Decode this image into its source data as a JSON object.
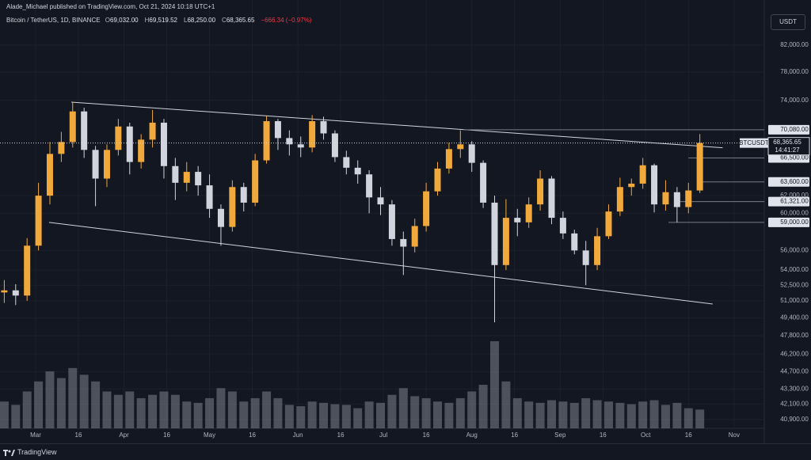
{
  "header": {
    "publisher": "Alade_Michael published on TradingView.com, Oct 21, 2024 10:18 UTC+1",
    "symbol": "Bitcoin / TetherUS, 1D, BINANCE",
    "ohlc": [
      [
        "O",
        "69,032.00"
      ],
      [
        "H",
        "69,519.52"
      ],
      [
        "L",
        "68,250.00"
      ],
      [
        "C",
        "68,365.65"
      ]
    ],
    "change": "−666.34 (−0.97%)",
    "currency": "USDT"
  },
  "footer": {
    "brand": "TradingView"
  },
  "chart_data": {
    "type": "candlestick",
    "log_y": true,
    "grid": true,
    "up_color": "#f0a93a",
    "down_color": "#d1d4dc",
    "volume_color": "#9598a1",
    "xlim": [
      -12.5,
      255.6
    ],
    "ylim": [
      40244,
      89170
    ],
    "xticks": [
      {
        "value": 0,
        "label": "Mar"
      },
      {
        "value": 15,
        "label": "16"
      },
      {
        "value": 31,
        "label": "Apr"
      },
      {
        "value": 46,
        "label": "16"
      },
      {
        "value": 61,
        "label": "May"
      },
      {
        "value": 76,
        "label": "16"
      },
      {
        "value": 92,
        "label": "Jun"
      },
      {
        "value": 107,
        "label": "16"
      },
      {
        "value": 122,
        "label": "Jul"
      },
      {
        "value": 137,
        "label": "16"
      },
      {
        "value": 153,
        "label": "Aug"
      },
      {
        "value": 168,
        "label": "16"
      },
      {
        "value": 184,
        "label": "Sep"
      },
      {
        "value": 199,
        "label": "16"
      },
      {
        "value": 214,
        "label": "Oct"
      },
      {
        "value": 229,
        "label": "16"
      },
      {
        "value": 245,
        "label": "Nov"
      }
    ],
    "yticks": [
      {
        "value": 82000,
        "label": "82,000.00"
      },
      {
        "value": 78000,
        "label": "78,000.00"
      },
      {
        "value": 74000,
        "label": "74,000.00"
      },
      {
        "value": 62000,
        "label": "62,000.00"
      },
      {
        "value": 60000,
        "label": "60,000.00"
      },
      {
        "value": 56000,
        "label": "56,000.00"
      },
      {
        "value": 54000,
        "label": "54,000.00"
      },
      {
        "value": 52500,
        "label": "52,500.00"
      },
      {
        "value": 51000,
        "label": "51,000.00"
      },
      {
        "value": 49400,
        "label": "49,400.00"
      },
      {
        "value": 47800,
        "label": "47,800.00"
      },
      {
        "value": 46200,
        "label": "46,200.00"
      },
      {
        "value": 44700,
        "label": "44,700.00"
      },
      {
        "value": 43300,
        "label": "43,300.00"
      },
      {
        "value": 42100,
        "label": "42,100.00"
      },
      {
        "value": 40900,
        "label": "40,900.00"
      }
    ],
    "levels": [
      {
        "value": 70080,
        "label": "70,080.00",
        "from": 150
      },
      {
        "value": 66500,
        "label": "66,500.00",
        "from": 229
      },
      {
        "value": 63600,
        "label": "63,600.00",
        "from": 232
      },
      {
        "value": 61321,
        "label": "61,321.00",
        "from": 225
      },
      {
        "value": 59000,
        "label": "59,000.00",
        "from": 222
      }
    ],
    "last_price": {
      "symbol": "BTCUSDT",
      "value": 68365.65,
      "label": "68,365.65",
      "countdown": "14:41:27"
    },
    "trendlines": [
      [
        [
          12.5,
          73760
        ],
        [
          241,
          67770
        ]
      ],
      [
        [
          4.7,
          59000
        ],
        [
          237.5,
          50700
        ]
      ]
    ],
    "candles": {
      "x": [
        -11,
        -7,
        -3,
        1,
        5,
        9,
        13,
        17,
        21,
        25,
        29,
        33,
        37,
        41,
        45,
        49,
        53,
        57,
        61,
        65,
        69,
        73,
        77,
        81,
        85,
        89,
        93,
        97,
        101,
        105,
        109,
        113,
        117,
        121,
        125,
        129,
        133,
        137,
        141,
        145,
        149,
        153,
        157,
        161,
        165,
        169,
        173,
        177,
        181,
        185,
        189,
        193,
        197,
        201,
        205,
        209,
        213,
        217,
        221,
        225,
        229,
        233
      ],
      "open": [
        51800,
        52000,
        51500,
        56500,
        62000,
        67000,
        68500,
        72500,
        67500,
        64000,
        67500,
        70500,
        66000,
        68800,
        71000,
        65500,
        63500,
        64800,
        63200,
        60500,
        58500,
        63000,
        61200,
        66200,
        71200,
        69000,
        68200,
        67800,
        71200,
        69600,
        66600,
        65300,
        64500,
        61800,
        61000,
        57200,
        56400,
        58600,
        62500,
        65200,
        67600,
        68200,
        65900,
        61200,
        54500,
        59500,
        59000,
        61000,
        64000,
        59500,
        57800,
        56000,
        54500,
        57500,
        60200,
        63000,
        63400,
        65600,
        61000,
        62400,
        60700,
        62600
      ],
      "high": [
        53000,
        52600,
        57300,
        63500,
        68500,
        69800,
        73800,
        73000,
        68000,
        68200,
        71500,
        71000,
        69500,
        72700,
        71500,
        66500,
        66000,
        65500,
        64500,
        61000,
        63800,
        63500,
        67000,
        71900,
        71500,
        70000,
        69200,
        72000,
        71800,
        70000,
        67400,
        66200,
        65000,
        63000,
        61500,
        58000,
        59400,
        63500,
        66000,
        68400,
        70000,
        68600,
        66200,
        62000,
        61600,
        60500,
        61800,
        65000,
        64300,
        60200,
        58200,
        57000,
        58400,
        61000,
        64100,
        64000,
        66500,
        65800,
        63800,
        63000,
        63500,
        69519.52
      ],
      "low": [
        50800,
        50600,
        51000,
        56000,
        61000,
        66000,
        67800,
        66500,
        60800,
        63000,
        66800,
        64500,
        65200,
        67800,
        64000,
        61500,
        62500,
        62000,
        59500,
        56500,
        58000,
        60200,
        60800,
        65800,
        67500,
        66800,
        66600,
        67200,
        68800,
        66000,
        64500,
        63400,
        60000,
        59800,
        56500,
        53500,
        55800,
        58000,
        62000,
        64600,
        66500,
        64800,
        60600,
        49000,
        54000,
        57500,
        58400,
        60300,
        58800,
        57200,
        55600,
        52500,
        54000,
        57200,
        59700,
        62000,
        62800,
        60100,
        60300,
        59000,
        60000,
        62300
      ],
      "close": [
        52000,
        51500,
        56500,
        62000,
        67000,
        68500,
        72500,
        67500,
        64000,
        67500,
        70500,
        66000,
        68800,
        71000,
        65500,
        63500,
        64800,
        63200,
        60500,
        58500,
        63000,
        61200,
        66200,
        71200,
        69000,
        68200,
        67800,
        71200,
        69600,
        66600,
        65300,
        64500,
        61800,
        61000,
        57200,
        56400,
        58600,
        62500,
        65200,
        67600,
        68200,
        65900,
        61200,
        54500,
        59500,
        59000,
        61000,
        64000,
        59500,
        57800,
        56000,
        54500,
        57500,
        60200,
        63000,
        63400,
        65600,
        61000,
        62400,
        60700,
        62600,
        68365.65
      ],
      "volume": [
        40,
        35,
        55,
        70,
        85,
        75,
        90,
        80,
        70,
        55,
        50,
        55,
        45,
        50,
        55,
        50,
        40,
        38,
        45,
        60,
        55,
        40,
        45,
        55,
        45,
        35,
        33,
        40,
        38,
        36,
        35,
        30,
        40,
        38,
        50,
        60,
        48,
        45,
        40,
        38,
        45,
        55,
        65,
        130,
        70,
        45,
        40,
        38,
        42,
        40,
        38,
        45,
        42,
        40,
        38,
        36,
        40,
        42,
        35,
        38,
        30,
        28
      ]
    }
  }
}
